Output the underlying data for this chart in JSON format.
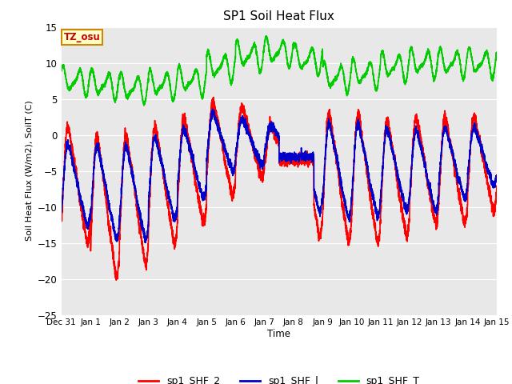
{
  "title": "SP1 Soil Heat Flux",
  "ylabel": "Soil Heat Flux (W/m2), SoilT (C)",
  "xlabel": "Time",
  "ylim": [
    -25,
    15
  ],
  "yticks": [
    -25,
    -20,
    -15,
    -10,
    -5,
    0,
    5,
    10,
    15
  ],
  "xtick_labels": [
    "Dec 31",
    "Jan 1",
    "Jan 2",
    "Jan 3",
    "Jan 4",
    "Jan 5",
    "Jan 6",
    "Jan 7",
    "Jan 8",
    "Jan 9",
    "Jan 10",
    "Jan 11",
    "Jan 12",
    "Jan 13",
    "Jan 14",
    "Jan 15"
  ],
  "xtick_positions": [
    0,
    1,
    2,
    3,
    4,
    5,
    6,
    7,
    8,
    9,
    10,
    11,
    12,
    13,
    14,
    15
  ],
  "line_colors": {
    "sp1_SHF_2": "#ff0000",
    "sp1_SHF_1": "#0000cc",
    "sp1_SHF_T": "#00cc00"
  },
  "line_widths": {
    "sp1_SHF_2": 1.2,
    "sp1_SHF_1": 1.2,
    "sp1_SHF_T": 1.2
  },
  "legend_labels": [
    "sp1_SHF_2",
    "sp1_SHF_l",
    "sp1_SHF_T"
  ],
  "fig_bg_color": "#ffffff",
  "plot_bg_color": "#e8e8e8",
  "annotation_text": "TZ_osu",
  "annotation_bg": "#ffffcc",
  "annotation_border": "#cc8800",
  "grid_color": "#ffffff"
}
